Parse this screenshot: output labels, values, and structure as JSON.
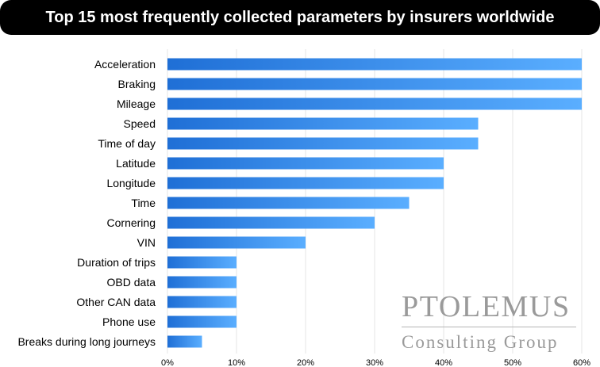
{
  "header": {
    "title": "Top 15 most frequently collected parameters by insurers worldwide"
  },
  "watermark": {
    "line1": "PTOLEMUS",
    "line2": "Consulting Group"
  },
  "colors": {
    "bar_start": "#1f6fd6",
    "bar_end": "#5aaeff",
    "grid": "#e6e6e6",
    "title_bg": "#000000"
  },
  "chart_data": {
    "type": "bar",
    "orientation": "horizontal",
    "title": "Top 15 most frequently collected parameters by insurers worldwide",
    "categories": [
      "Acceleration",
      "Braking",
      "Mileage",
      "Speed",
      "Time of day",
      "Latitude",
      "Longitude",
      "Time",
      "Cornering",
      "VIN",
      "Duration of trips",
      "OBD data",
      "Other CAN data",
      "Phone use",
      "Breaks during long journeys"
    ],
    "values": [
      60,
      60,
      60,
      45,
      45,
      40,
      40,
      35,
      30,
      20,
      10,
      10,
      10,
      10,
      5
    ],
    "xlim": [
      0,
      60
    ],
    "xticks": [
      "0%",
      "10%",
      "20%",
      "30%",
      "40%",
      "50%",
      "60%"
    ],
    "xlabel": "",
    "ylabel": "",
    "grid": true,
    "legend": "none"
  }
}
